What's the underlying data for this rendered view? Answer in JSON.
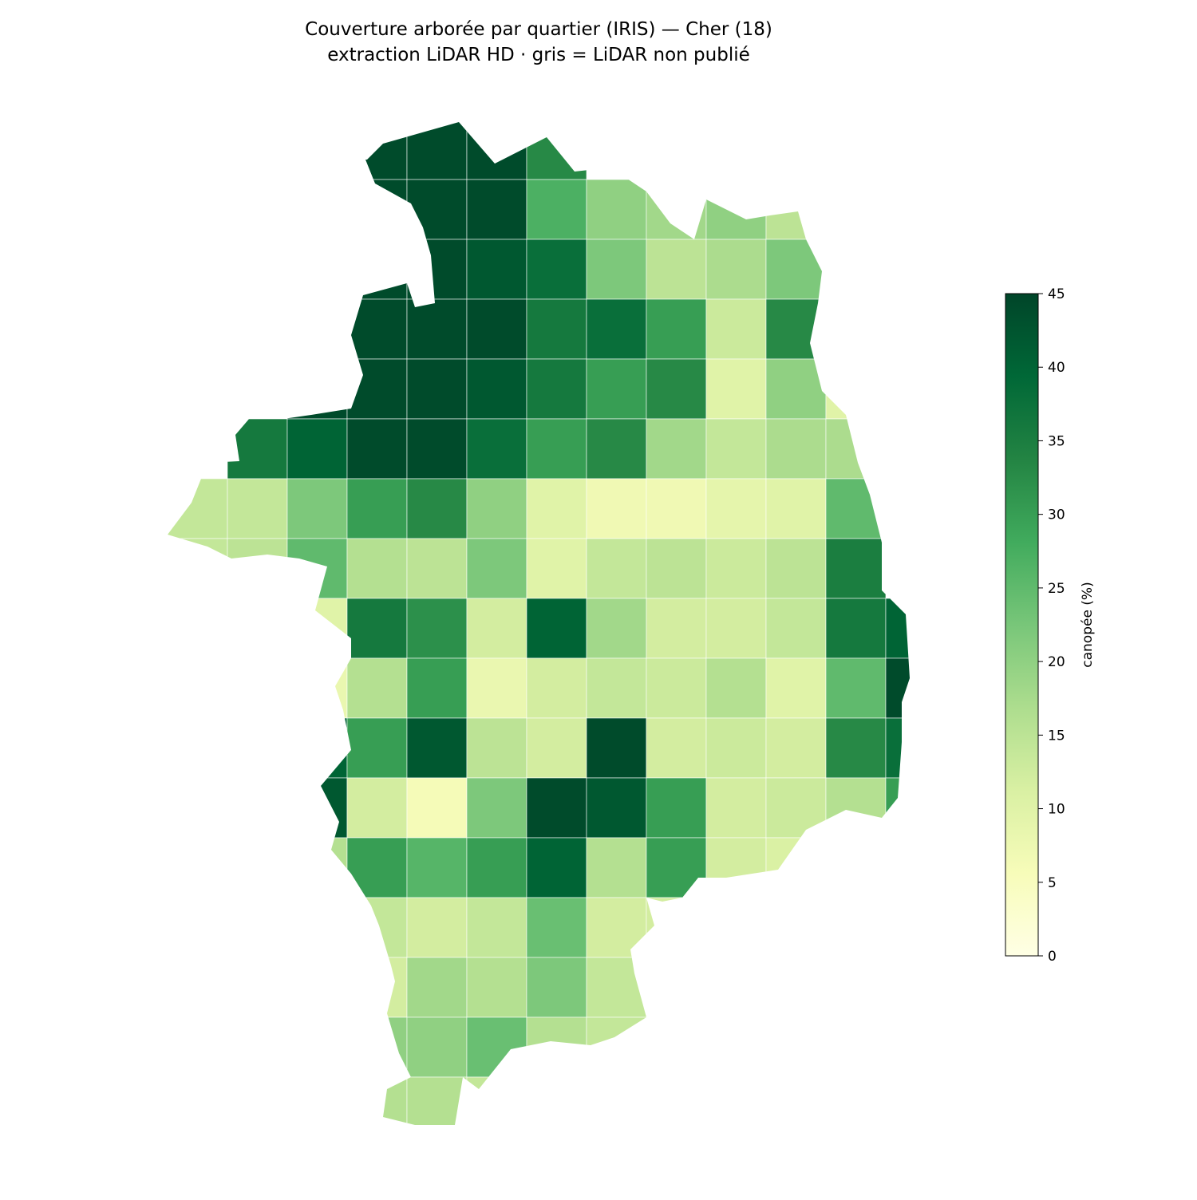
{
  "chart_data": {
    "type": "choropleth",
    "title": "Couverture arborée par quartier (IRIS) — Cher (18)",
    "subtitle": "extraction LiDAR HD · gris = LiDAR non publié",
    "colorbar_label": "canopée (%)",
    "clim": [
      0,
      45
    ],
    "cticks": [
      0,
      5,
      10,
      15,
      20,
      25,
      30,
      35,
      40,
      45
    ],
    "colormap": [
      "#ffffe5",
      "#f7fcb9",
      "#d9f0a3",
      "#addd8e",
      "#78c679",
      "#41ab5d",
      "#238443",
      "#006837",
      "#004529"
    ],
    "cells": [
      [
        null,
        null,
        null,
        44,
        44,
        44,
        33,
        null,
        null,
        null,
        null,
        null,
        null
      ],
      [
        null,
        null,
        null,
        44,
        44,
        44,
        27,
        20,
        18,
        20,
        15,
        null,
        null
      ],
      [
        null,
        null,
        null,
        44,
        44,
        42,
        38,
        22,
        15,
        17,
        22,
        null,
        null
      ],
      [
        null,
        null,
        null,
        44,
        44,
        44,
        36,
        38,
        30,
        13,
        33,
        null,
        null
      ],
      [
        null,
        null,
        44,
        44,
        44,
        42,
        36,
        30,
        33,
        10,
        20,
        10,
        null
      ],
      [
        null,
        36,
        40,
        44,
        44,
        38,
        30,
        33,
        18,
        14,
        17,
        17,
        null
      ],
      [
        14,
        14,
        22,
        30,
        33,
        20,
        10,
        7,
        7,
        9,
        10,
        25,
        null
      ],
      [
        14,
        15,
        25,
        16,
        15,
        22,
        10,
        14,
        15,
        13,
        15,
        35,
        null
      ],
      [
        null,
        null,
        10,
        36,
        32,
        12,
        40,
        18,
        12,
        12,
        14,
        36,
        40
      ],
      [
        null,
        null,
        8,
        16,
        30,
        8,
        12,
        14,
        13,
        16,
        10,
        25,
        44
      ],
      [
        null,
        null,
        40,
        30,
        42,
        15,
        12,
        44,
        12,
        13,
        12,
        33,
        38
      ],
      [
        null,
        null,
        42,
        12,
        6,
        22,
        44,
        42,
        30,
        12,
        13,
        16,
        30
      ],
      [
        null,
        null,
        16,
        30,
        26,
        30,
        40,
        16,
        30,
        12,
        11,
        null,
        null
      ],
      [
        null,
        null,
        null,
        14,
        12,
        14,
        24,
        12,
        12,
        null,
        null,
        null,
        null
      ],
      [
        null,
        null,
        null,
        12,
        18,
        16,
        22,
        14,
        13,
        null,
        null,
        null,
        null
      ],
      [
        null,
        null,
        null,
        20,
        20,
        24,
        16,
        14,
        null,
        null,
        null,
        null,
        null
      ],
      [
        null,
        null,
        null,
        16,
        16,
        14,
        null,
        null,
        null,
        null,
        null,
        null,
        null
      ]
    ]
  }
}
